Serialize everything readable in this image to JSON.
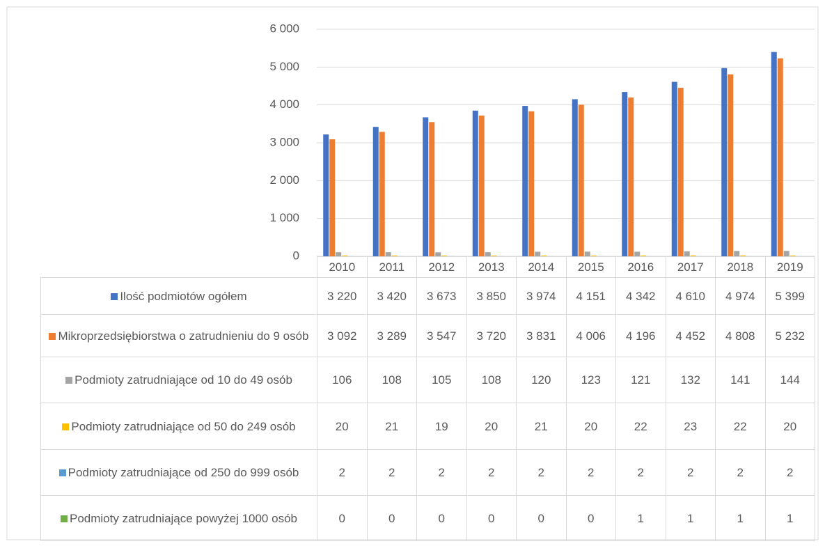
{
  "chart_data": {
    "type": "bar",
    "categories": [
      "2010",
      "2011",
      "2012",
      "2013",
      "2014",
      "2015",
      "2016",
      "2017",
      "2018",
      "2019"
    ],
    "series": [
      {
        "name": "Ilość podmiotów ogółem",
        "color": "#4472c4",
        "values": [
          3220,
          3420,
          3673,
          3850,
          3974,
          4151,
          4342,
          4610,
          4974,
          5399
        ],
        "value_labels": [
          "3 220",
          "3 420",
          "3 673",
          "3 850",
          "3 974",
          "4 151",
          "4 342",
          "4 610",
          "4 974",
          "5 399"
        ]
      },
      {
        "name": "Mikroprzedsiębiorstwa o zatrudnieniu do 9 osób",
        "color": "#ed7d31",
        "values": [
          3092,
          3289,
          3547,
          3720,
          3831,
          4006,
          4196,
          4452,
          4808,
          5232
        ],
        "value_labels": [
          "3 092",
          "3 289",
          "3 547",
          "3 720",
          "3 831",
          "4 006",
          "4 196",
          "4 452",
          "4 808",
          "5 232"
        ]
      },
      {
        "name": "Podmioty zatrudniające od 10 do 49 osób",
        "color": "#a5a5a5",
        "values": [
          106,
          108,
          105,
          108,
          120,
          123,
          121,
          132,
          141,
          144
        ]
      },
      {
        "name": "Podmioty zatrudniające od 50 do 249 osób",
        "color": "#ffc000",
        "values": [
          20,
          21,
          19,
          20,
          21,
          20,
          22,
          23,
          22,
          20
        ]
      },
      {
        "name": "Podmioty zatrudniające od 250 do 999 osób",
        "color": "#5b9bd5",
        "values": [
          2,
          2,
          2,
          2,
          2,
          2,
          2,
          2,
          2,
          2
        ]
      },
      {
        "name": "Podmioty zatrudniające powyżej 1000 osób",
        "color": "#70ad47",
        "values": [
          0,
          0,
          0,
          0,
          0,
          0,
          1,
          1,
          1,
          1
        ]
      }
    ],
    "ylim": [
      0,
      6000
    ],
    "yticks": [
      0,
      {
        "value": 1000,
        "label": "1 000"
      },
      {
        "value": 2000,
        "label": "2 000"
      },
      {
        "value": 3000,
        "label": "3 000"
      },
      {
        "value": 4000,
        "label": "4 000"
      },
      {
        "value": 5000,
        "label": "5 000"
      },
      {
        "value": 6000,
        "label": "6 000"
      }
    ],
    "grid": true
  }
}
